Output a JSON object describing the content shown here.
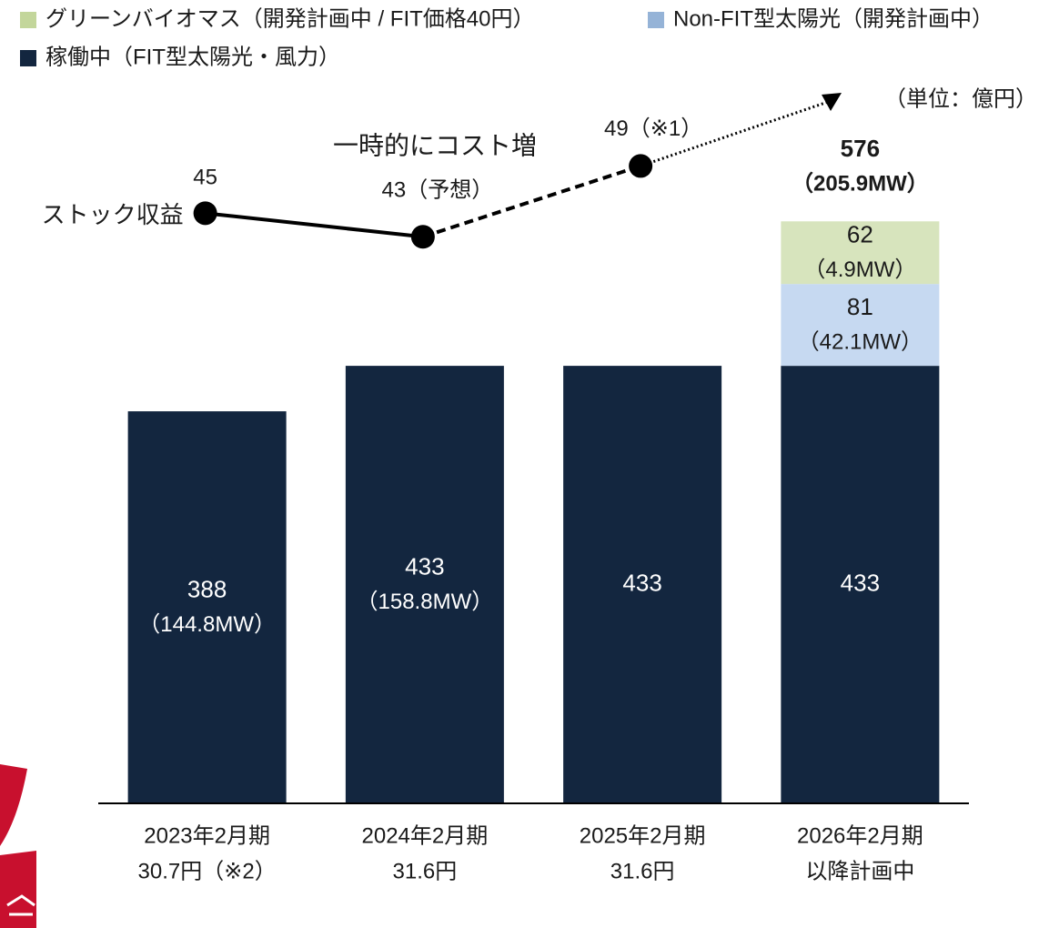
{
  "chart_data": {
    "type": "bar",
    "unit_label": "（単位：億円）",
    "categories": [
      "2023年2月期",
      "2024年2月期",
      "2025年2月期",
      "2026年2月期"
    ],
    "category_sublabels": [
      "30.7円（※2）",
      "31.6円",
      "31.6円",
      "以降計画中"
    ],
    "stacked": true,
    "ylim": [
      0,
      660
    ],
    "series": [
      {
        "name": "稼働中（FIT型太陽光・風力）",
        "color": "#13263f",
        "label_color": "#ffffff",
        "values": [
          388,
          433,
          433,
          433
        ],
        "sublabels": [
          "（144.8MW）",
          "（158.8MW）",
          null,
          null
        ]
      },
      {
        "name": "Non-FIT型太陽光（開発計画中）",
        "color": "#c6d9f1",
        "legend_color": "#95b3d7",
        "label_color": "#1a1a1a",
        "values": [
          null,
          null,
          null,
          81
        ],
        "sublabels": [
          null,
          null,
          null,
          "（42.1MW）"
        ]
      },
      {
        "name": "グリーンバイオマス（開発計画中 / FIT価格40円）",
        "color": "#d7e4bd",
        "legend_color": "#c3d69b",
        "label_color": "#1a1a1a",
        "values": [
          null,
          null,
          null,
          62
        ],
        "sublabels": [
          null,
          null,
          null,
          "（4.9MW）"
        ]
      }
    ],
    "totals": [
      null,
      null,
      null,
      576
    ],
    "total_sublabels": [
      null,
      null,
      null,
      "（205.9MW）"
    ],
    "line": {
      "name": "ストック収益",
      "color": "#000000",
      "axis": "y2",
      "values": [
        45,
        43,
        49
      ],
      "value_labels": [
        "45",
        "43（予想）",
        "49（※1）"
      ],
      "annotation": "一時的にコスト増"
    },
    "y2lim": [
      -5,
      51.5
    ]
  }
}
